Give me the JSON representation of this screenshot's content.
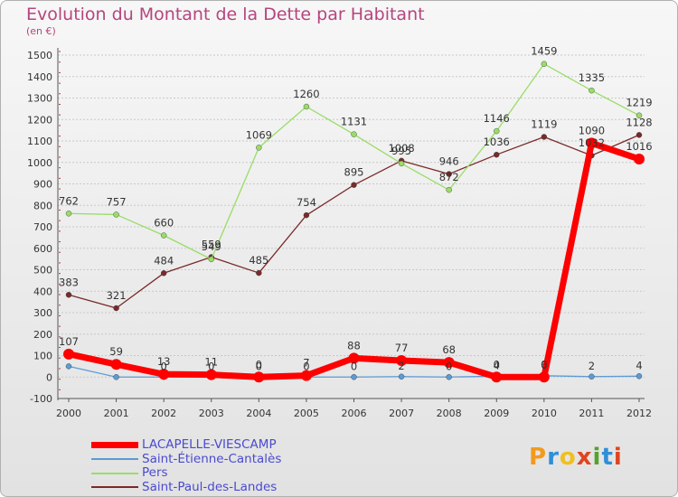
{
  "chart_data": {
    "type": "line",
    "title": "Evolution du Montant de la Dette par Habitant",
    "subtitle": "(en €)",
    "x": [
      "2000",
      "2001",
      "2002",
      "2003",
      "2004",
      "2005",
      "2006",
      "2007",
      "2008",
      "2009",
      "2010",
      "2011",
      "2012"
    ],
    "ylim": [
      -100,
      1500
    ],
    "yticks": [
      -100,
      0,
      100,
      200,
      300,
      400,
      500,
      600,
      700,
      800,
      900,
      1000,
      1100,
      1200,
      1300,
      1400,
      1500
    ],
    "grid": true,
    "legend_position": "bottom-left",
    "series": [
      {
        "name": "LACAPELLE-VIESCAMP",
        "color": "#ff0000",
        "values": [
          107,
          59,
          13,
          11,
          0,
          7,
          88,
          77,
          68,
          0,
          0,
          1090,
          1016
        ],
        "labels": [
          "107",
          "59",
          "13",
          "11",
          "0",
          "7",
          "88",
          "77",
          "68",
          "0",
          "0",
          "1090",
          "1016"
        ]
      },
      {
        "name": "Saint-Étienne-Cantalès",
        "color": "#5b9bd5",
        "values": [
          50,
          0,
          0,
          0,
          0,
          0,
          0,
          2,
          0,
          4,
          6,
          2,
          4
        ],
        "labels": [
          "",
          "",
          "0",
          "0",
          "0",
          "0",
          "0",
          "2",
          "0",
          "4",
          "6",
          "2",
          "4"
        ]
      },
      {
        "name": "Pers",
        "color": "#99dd66",
        "values": [
          762,
          757,
          660,
          549,
          1069,
          1260,
          1131,
          995,
          872,
          1146,
          1459,
          1335,
          1219
        ],
        "labels": [
          "762",
          "757",
          "660",
          "549",
          "1069",
          "1260",
          "1131",
          "995",
          "872",
          "1146",
          "1459",
          "1335",
          "1219"
        ]
      },
      {
        "name": "Saint-Paul-des-Landes",
        "color": "#7a2a2a",
        "values": [
          383,
          321,
          484,
          559,
          485,
          754,
          895,
          1008,
          946,
          1036,
          1119,
          1032,
          1128
        ],
        "labels": [
          "383",
          "321",
          "484",
          "559",
          "485",
          "754",
          "895",
          "1008",
          "946",
          "1036",
          "1119",
          "1032",
          "1128"
        ]
      }
    ]
  },
  "logo": {
    "text": "Proxiti",
    "letters": [
      "P",
      "r",
      "o",
      "x",
      "i",
      "t",
      "i"
    ]
  }
}
